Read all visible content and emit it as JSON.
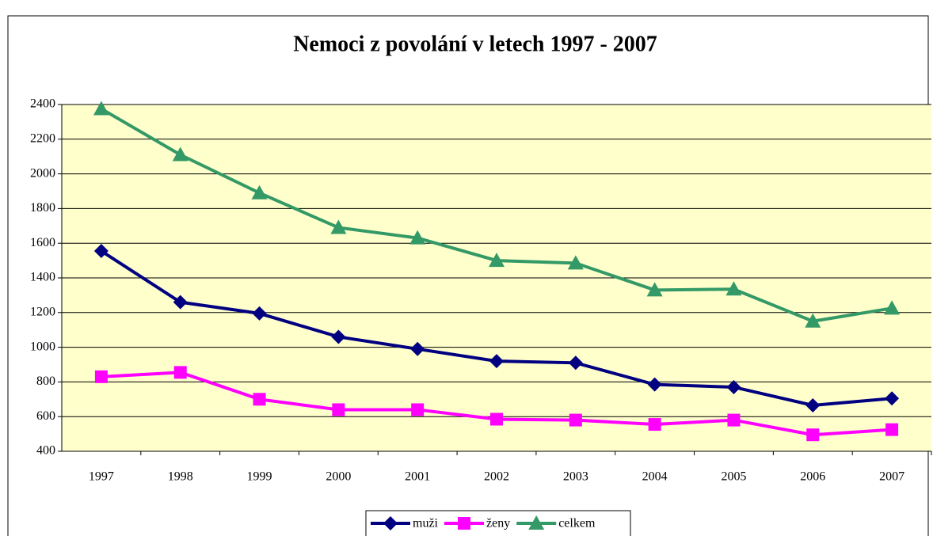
{
  "chart_data": {
    "type": "line",
    "title": "Nemoci z povolání v letech 1997 - 2007",
    "categories": [
      "1997",
      "1998",
      "1999",
      "2000",
      "2001",
      "2002",
      "2003",
      "2004",
      "2005",
      "2006",
      "2007"
    ],
    "series": [
      {
        "name": "muži",
        "color": "#000080",
        "marker": "diamond",
        "values": [
          1555,
          1260,
          1195,
          1060,
          990,
          920,
          910,
          785,
          770,
          665,
          705
        ]
      },
      {
        "name": "ženy",
        "color": "#ff00ff",
        "marker": "square",
        "values": [
          830,
          855,
          700,
          640,
          640,
          585,
          580,
          555,
          580,
          495,
          525
        ]
      },
      {
        "name": "celkem",
        "color": "#339966",
        "marker": "triangle",
        "values": [
          2375,
          2110,
          1890,
          1690,
          1630,
          1500,
          1485,
          1330,
          1335,
          1150,
          1225
        ]
      }
    ],
    "ylim": [
      400,
      2400
    ],
    "yticks": [
      400,
      600,
      800,
      1000,
      1200,
      1400,
      1600,
      1800,
      2000,
      2200,
      2400
    ],
    "grid": true,
    "legend": "bottom",
    "plot_background": "#ffffcc"
  }
}
